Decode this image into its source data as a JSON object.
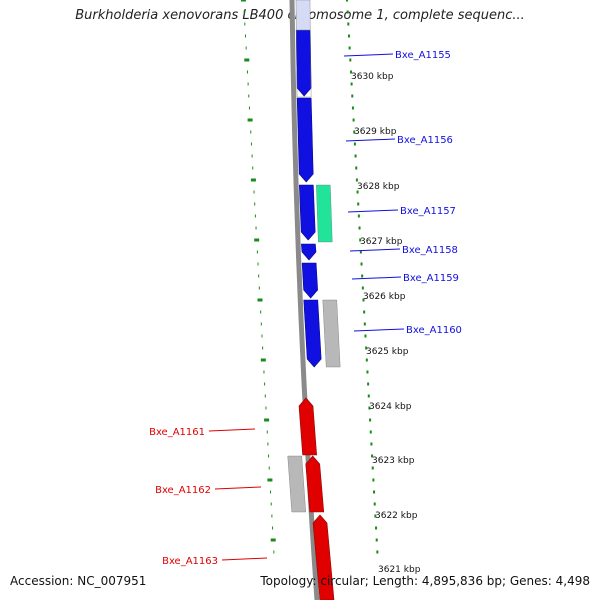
{
  "title": "Burkholderia xenovorans LB400 chromosome 1, complete sequenc...",
  "footer": {
    "accession": "Accession: NC_007951",
    "stats": "Topology: circular; Length: 4,895,836 bp; Genes: 4,498"
  },
  "colors": {
    "forward_cds": "#1010e0",
    "reverse_cds": "#e00000",
    "rna": "#22e39a",
    "other": "#b8b8b8",
    "tick": "#1a8a1a",
    "backbone": "#888888"
  },
  "scale_labels": [
    "3630 kbp",
    "3629 kbp",
    "3628 kbp",
    "3627 kbp",
    "3626 kbp",
    "3625 kbp",
    "3624 kbp",
    "3623 kbp",
    "3622 kbp",
    "3621 kbp"
  ],
  "gene_labels": {
    "forward": [
      "Bxe_A1155",
      "Bxe_A1156",
      "Bxe_A1157",
      "Bxe_A1158",
      "Bxe_A1159",
      "Bxe_A1160"
    ],
    "reverse": [
      "Bxe_A1161",
      "Bxe_A1162",
      "Bxe_A1163"
    ]
  }
}
